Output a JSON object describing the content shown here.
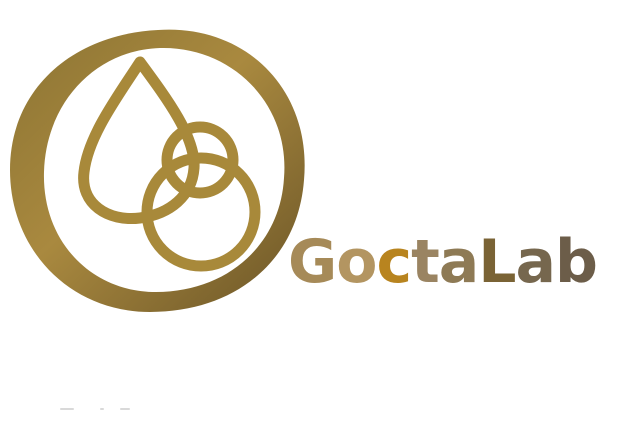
{
  "brand": {
    "logo_icon": "drop-and-rings-icon",
    "letters": [
      {
        "char": "G",
        "color": "#a68a58"
      },
      {
        "char": "o",
        "color": "#b39561"
      },
      {
        "char": "c",
        "color": "#b8841f"
      },
      {
        "char": "t",
        "color": "#9a8462"
      },
      {
        "char": "a",
        "color": "#8e7a55"
      },
      {
        "char": "L",
        "color": "#7a6335"
      },
      {
        "char": "a",
        "color": "#76674e"
      },
      {
        "char": "b",
        "color": "#6c5d49"
      }
    ]
  },
  "colors": {
    "ring_dark": "#6e5a2a",
    "ring_light": "#b08e3f",
    "symbol": "#a8893a",
    "background": "#ffffff"
  }
}
